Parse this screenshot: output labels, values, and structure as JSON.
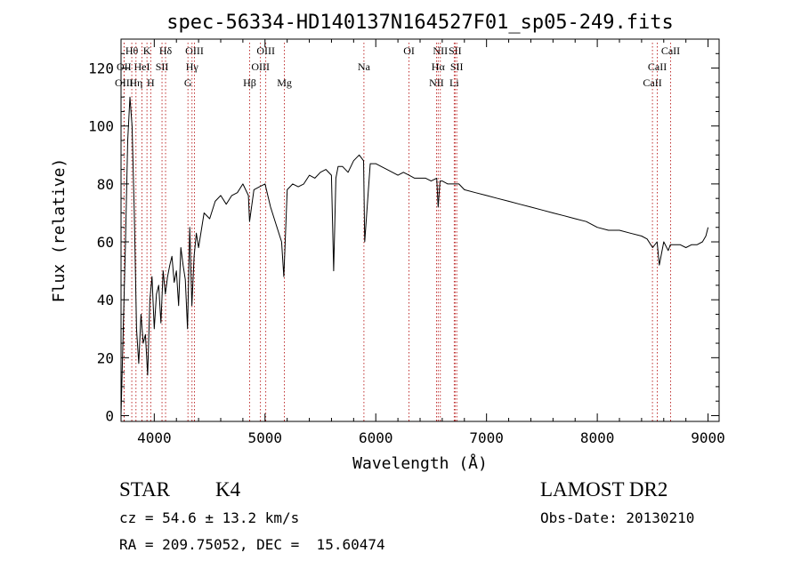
{
  "chart_data": {
    "type": "line",
    "title": "spec-56334-HD140137N164527F01_sp05-249.fits",
    "xlabel": "Wavelength (Å)",
    "ylabel": "Flux (relative)",
    "xlim": [
      3700,
      9100
    ],
    "ylim": [
      -2,
      130
    ],
    "xticks": [
      4000,
      5000,
      6000,
      7000,
      8000,
      9000
    ],
    "yticks": [
      0,
      20,
      40,
      60,
      80,
      100,
      120
    ],
    "grid": false,
    "series": [
      {
        "x": [
          3700,
          3720,
          3740,
          3760,
          3780,
          3800,
          3820,
          3840,
          3860,
          3880,
          3900,
          3920,
          3940,
          3960,
          3980,
          4000,
          4020,
          4040,
          4060,
          4080,
          4100,
          4120,
          4140,
          4160,
          4180,
          4200,
          4220,
          4240,
          4260,
          4280,
          4300,
          4320,
          4340,
          4360,
          4380,
          4400,
          4450,
          4500,
          4550,
          4600,
          4650,
          4700,
          4750,
          4800,
          4850,
          4860,
          4900,
          4950,
          5000,
          5050,
          5100,
          5150,
          5170,
          5180,
          5200,
          5250,
          5300,
          5350,
          5400,
          5450,
          5500,
          5550,
          5600,
          5620,
          5640,
          5660,
          5700,
          5750,
          5800,
          5850,
          5890,
          5900,
          5950,
          6000,
          6050,
          6100,
          6150,
          6200,
          6250,
          6300,
          6350,
          6400,
          6450,
          6500,
          6550,
          6563,
          6580,
          6600,
          6650,
          6700,
          6750,
          6800,
          6900,
          7000,
          7100,
          7200,
          7300,
          7400,
          7500,
          7600,
          7700,
          7800,
          7900,
          8000,
          8100,
          8200,
          8300,
          8400,
          8450,
          8500,
          8540,
          8560,
          8600,
          8640,
          8660,
          8700,
          8750,
          8800,
          8850,
          8900,
          8950,
          8980,
          9000
        ],
        "y": [
          0,
          30,
          60,
          95,
          110,
          100,
          70,
          30,
          18,
          35,
          25,
          28,
          14,
          40,
          48,
          30,
          42,
          45,
          32,
          50,
          42,
          48,
          52,
          55,
          46,
          50,
          38,
          58,
          52,
          47,
          30,
          65,
          38,
          55,
          63,
          58,
          70,
          68,
          74,
          76,
          73,
          76,
          77,
          80,
          76,
          67,
          78,
          79,
          80,
          72,
          66,
          60,
          48,
          58,
          78,
          80,
          79,
          80,
          83,
          82,
          84,
          85,
          83,
          50,
          82,
          86,
          86,
          84,
          88,
          90,
          88,
          60,
          87,
          87,
          86,
          85,
          84,
          83,
          84,
          83,
          82,
          82,
          82,
          81,
          82,
          72,
          81,
          81,
          80,
          80,
          80,
          78,
          77,
          76,
          75,
          74,
          73,
          72,
          71,
          70,
          69,
          68,
          67,
          65,
          64,
          64,
          63,
          62,
          61,
          58,
          60,
          52,
          60,
          57,
          59,
          59,
          59,
          58,
          59,
          59,
          60,
          62,
          65
        ]
      }
    ],
    "line_markers": [
      {
        "label": "Hθ",
        "wavelength": 3797,
        "row": 0
      },
      {
        "label": "K",
        "wavelength": 3934,
        "row": 0
      },
      {
        "label": "Hδ",
        "wavelength": 4102,
        "row": 0
      },
      {
        "label": "OIII",
        "wavelength": 4363,
        "row": 0
      },
      {
        "label": "OIII",
        "wavelength": 5007,
        "row": 0
      },
      {
        "label": "OI",
        "wavelength": 6300,
        "row": 0
      },
      {
        "label": "NII",
        "wavelength": 6583,
        "row": 0
      },
      {
        "label": "SII",
        "wavelength": 6716,
        "row": 0
      },
      {
        "label": "CaII",
        "wavelength": 8662,
        "row": 0
      },
      {
        "label": "OII",
        "wavelength": 3727,
        "row": 1
      },
      {
        "label": "HeI",
        "wavelength": 3889,
        "row": 1
      },
      {
        "label": "SII",
        "wavelength": 4070,
        "row": 1
      },
      {
        "label": "Hγ",
        "wavelength": 4341,
        "row": 1
      },
      {
        "label": "OIII",
        "wavelength": 4959,
        "row": 1
      },
      {
        "label": "Na",
        "wavelength": 5893,
        "row": 1
      },
      {
        "label": "Hα",
        "wavelength": 6563,
        "row": 1
      },
      {
        "label": "SII",
        "wavelength": 6731,
        "row": 1
      },
      {
        "label": "CaII",
        "wavelength": 8542,
        "row": 1
      },
      {
        "label": "OIII",
        "wavelength": 3727,
        "row": 2
      },
      {
        "label": "Hη",
        "wavelength": 3835,
        "row": 2
      },
      {
        "label": "H",
        "wavelength": 3968,
        "row": 2
      },
      {
        "label": "G",
        "wavelength": 4304,
        "row": 2
      },
      {
        "label": "Hβ",
        "wavelength": 4861,
        "row": 2
      },
      {
        "label": "Mg",
        "wavelength": 5175,
        "row": 2
      },
      {
        "label": "NII",
        "wavelength": 6548,
        "row": 2
      },
      {
        "label": "Li",
        "wavelength": 6708,
        "row": 2
      },
      {
        "label": "CaII",
        "wavelength": 8498,
        "row": 2
      }
    ]
  },
  "info": {
    "object_class": "STAR",
    "subclass": "K4",
    "redshift": "cz = 54.6 ± 13.2 km/s",
    "coords": "RA = 209.75052, DEC =  15.60474",
    "survey": "LAMOST DR2",
    "obs_date": "Obs-Date: 20130210"
  },
  "colors": {
    "axis": "#000000",
    "spectrum": "#000000",
    "marker_line": "#b00000"
  }
}
